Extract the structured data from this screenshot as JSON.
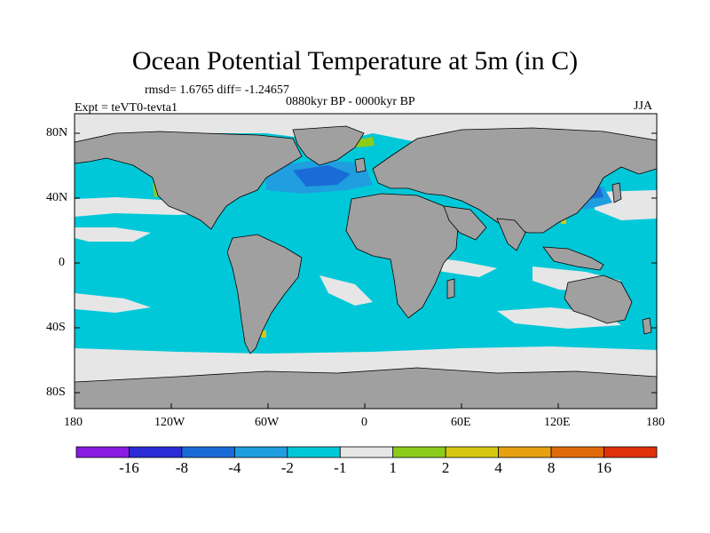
{
  "title": "Ocean Potential Temperature at 5m (in C)",
  "stats": {
    "rmsd_diff": "rmsd= 1.6765 diff= -1.24657",
    "period": "0880kyr BP - 0000kyr BP",
    "experiment": "Expt = teVT0-tevta1",
    "season": "JJA"
  },
  "axes": {
    "lat_ticks": [
      "80N",
      "40N",
      "0",
      "40S",
      "80S"
    ],
    "lon_ticks": [
      "180",
      "120W",
      "60W",
      "0",
      "60E",
      "120E",
      "180"
    ]
  },
  "colorbar": {
    "labels": [
      "-16",
      "-8",
      "-4",
      "-2",
      "-1",
      "1",
      "2",
      "4",
      "8",
      "16"
    ],
    "colors": [
      "#8a1be2",
      "#2b2bd8",
      "#1a6bd8",
      "#1f9ee0",
      "#00c8d8",
      "#e6e6e6",
      "#8ccc1a",
      "#d6c812",
      "#e6a010",
      "#e06a0a",
      "#e0300a"
    ]
  },
  "map_colors": {
    "land": "#a0a0a0",
    "sea_ice": "#e6e6e6",
    "ocean_bg": "#00c8d8",
    "ocean_minus2": "#1f9ee0",
    "ocean_minus4": "#1a6bd8",
    "ocean_minus8": "#2b2bd8",
    "warm_1_2": "#8ccc1a",
    "warm_2_4": "#d6c812"
  }
}
